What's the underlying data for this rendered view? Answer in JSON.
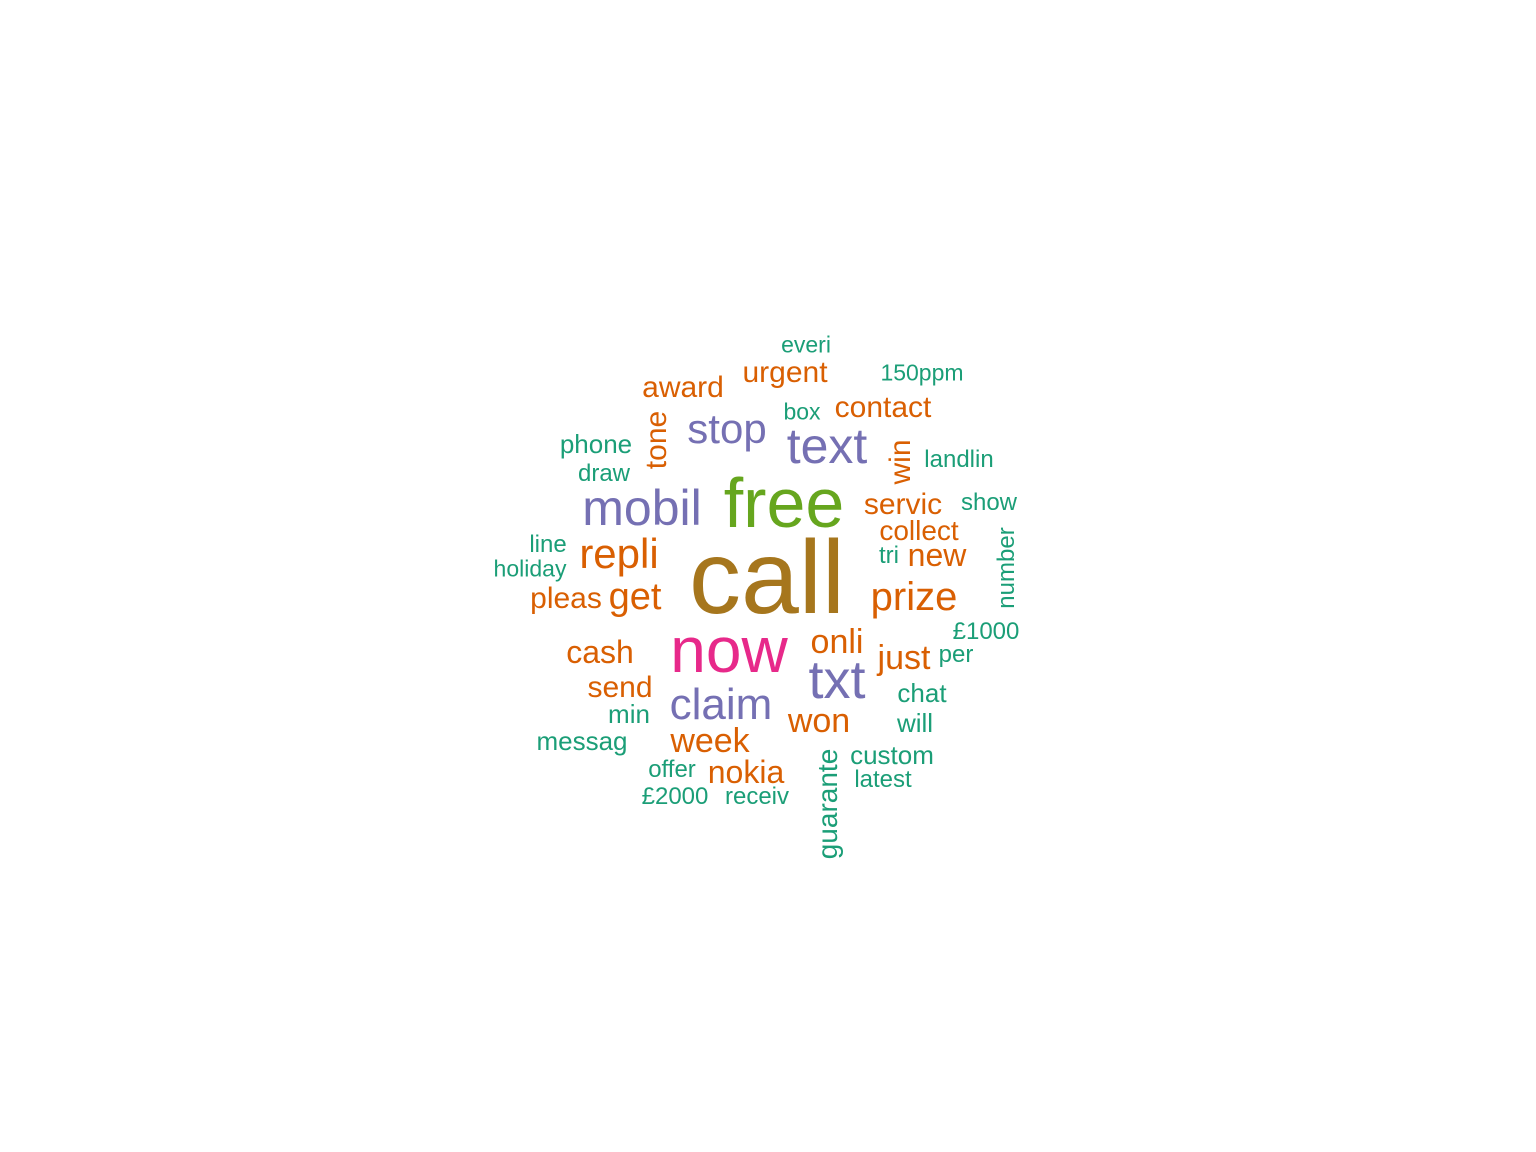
{
  "colors": {
    "dark_teal": "#1b9e77",
    "orange": "#d95f02",
    "purple": "#7570b3",
    "pink": "#e7298a",
    "green": "#66a61e",
    "brown": "#a6761d"
  },
  "words": [
    {
      "text": "call",
      "color": "brown"
    },
    {
      "text": "now",
      "color": "pink"
    },
    {
      "text": "free",
      "color": "green"
    },
    {
      "text": "txt",
      "color": "purple"
    },
    {
      "text": "mobil",
      "color": "purple"
    },
    {
      "text": "text",
      "color": "purple"
    },
    {
      "text": "claim",
      "color": "purple"
    },
    {
      "text": "stop",
      "color": "purple"
    },
    {
      "text": "repli",
      "color": "orange"
    },
    {
      "text": "prize",
      "color": "orange"
    },
    {
      "text": "get",
      "color": "orange"
    },
    {
      "text": "onli",
      "color": "orange"
    },
    {
      "text": "week",
      "color": "orange"
    },
    {
      "text": "won",
      "color": "orange"
    },
    {
      "text": "just",
      "color": "orange"
    },
    {
      "text": "cash",
      "color": "orange"
    },
    {
      "text": "nokia",
      "color": "orange"
    },
    {
      "text": "new",
      "color": "orange"
    },
    {
      "text": "servic",
      "color": "orange"
    },
    {
      "text": "contact",
      "color": "orange"
    },
    {
      "text": "award",
      "color": "orange"
    },
    {
      "text": "urgent",
      "color": "orange"
    },
    {
      "text": "send",
      "color": "orange"
    },
    {
      "text": "pleas",
      "color": "orange"
    },
    {
      "text": "tone",
      "color": "orange"
    },
    {
      "text": "win",
      "color": "orange"
    },
    {
      "text": "collect",
      "color": "orange"
    },
    {
      "text": "phone",
      "color": "dark_teal"
    },
    {
      "text": "draw",
      "color": "dark_teal"
    },
    {
      "text": "everi",
      "color": "dark_teal"
    },
    {
      "text": "150ppm",
      "color": "dark_teal"
    },
    {
      "text": "box",
      "color": "dark_teal"
    },
    {
      "text": "landlin",
      "color": "dark_teal"
    },
    {
      "text": "show",
      "color": "dark_teal"
    },
    {
      "text": "number",
      "color": "dark_teal"
    },
    {
      "text": "tri",
      "color": "dark_teal"
    },
    {
      "text": "line",
      "color": "dark_teal"
    },
    {
      "text": "holiday",
      "color": "dark_teal"
    },
    {
      "text": "£1000",
      "color": "dark_teal"
    },
    {
      "text": "per",
      "color": "dark_teal"
    },
    {
      "text": "chat",
      "color": "dark_teal"
    },
    {
      "text": "will",
      "color": "dark_teal"
    },
    {
      "text": "min",
      "color": "dark_teal"
    },
    {
      "text": "messag",
      "color": "dark_teal"
    },
    {
      "text": "custom",
      "color": "dark_teal"
    },
    {
      "text": "latest",
      "color": "dark_teal"
    },
    {
      "text": "offer",
      "color": "dark_teal"
    },
    {
      "text": "£2000",
      "color": "dark_teal"
    },
    {
      "text": "receiv",
      "color": "dark_teal"
    },
    {
      "text": "guarante",
      "color": "dark_teal"
    }
  ]
}
